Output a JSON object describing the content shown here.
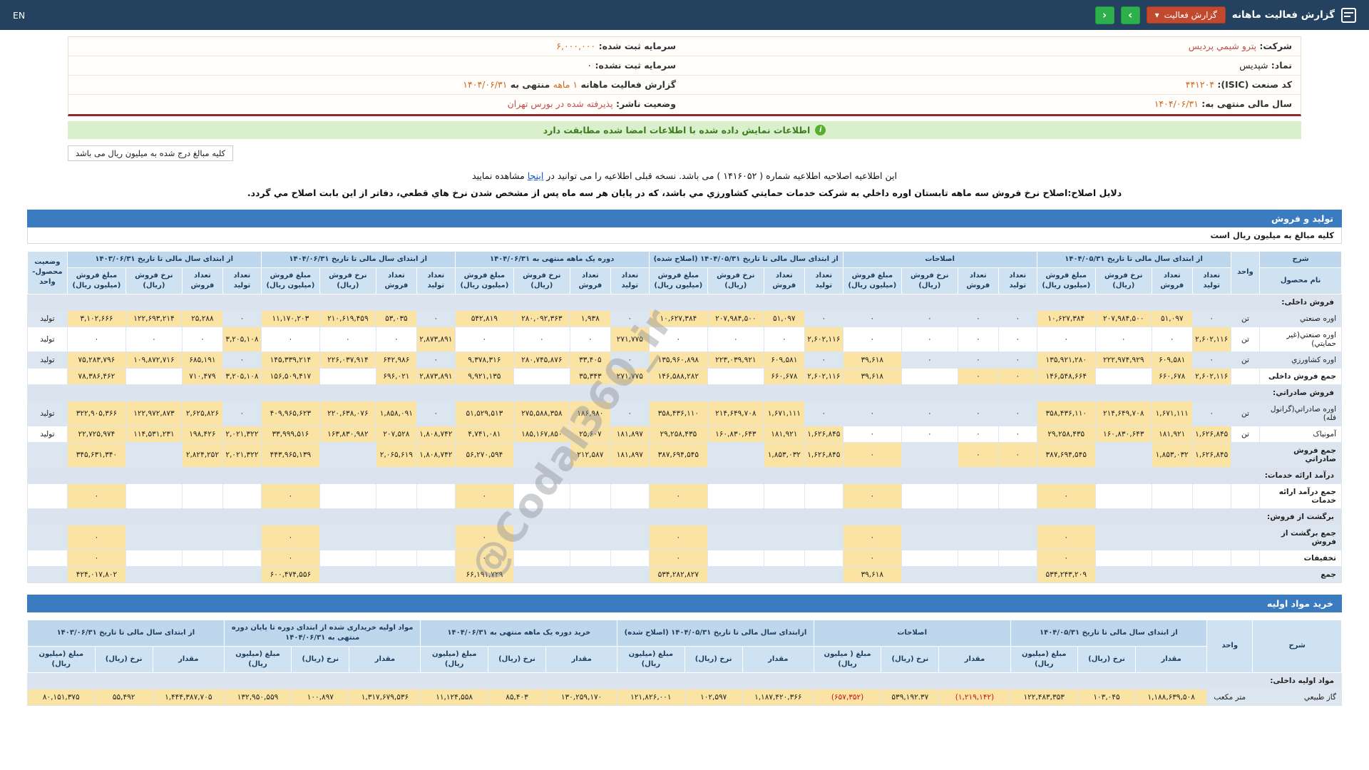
{
  "colors": {
    "navy": "#24415f",
    "btn_green": "#2db04b",
    "btn_red": "#c2482e",
    "bar_blue": "#3b7cc0",
    "head_blue": "#cfe2f2",
    "head_blue2": "#bed7ec",
    "row_blue": "#dce6f1",
    "cell_yellow": "#fbe3a3",
    "sec_row": "#dbe3ee",
    "green_bar_bg": "#daefcb",
    "green_bar_text": "#3c7d20",
    "orange": "#d2691e",
    "red_text": "#c0504d",
    "link": "#1155cc",
    "neg": "#cc1111",
    "border_info": "#e6e0cc",
    "info_bottom": "#8f2d2b"
  },
  "topbar": {
    "title": "گزارش فعالیت ماهانه",
    "dropdown_label": "گزارش فعالیت",
    "caret": "▾",
    "next_arrow": "›",
    "prev_arrow": "‹",
    "lang": "EN"
  },
  "company_info": {
    "rows": [
      [
        [
          {
            "t": "شرکت:  ",
            "b": 1
          },
          {
            "t": "پترو شیمي پردیس",
            "c": "red"
          }
        ],
        [
          {
            "t": "سرمایه ثبت شده:  ",
            "b": 1
          },
          {
            "t": "۶,۰۰۰,۰۰۰",
            "c": "org"
          }
        ]
      ],
      [
        [
          {
            "t": "نماد:  ",
            "b": 1
          },
          {
            "t": "شپدیس"
          }
        ],
        [
          {
            "t": "سرمایه ثبت نشده:  ",
            "b": 1
          },
          {
            "t": "۰"
          }
        ]
      ],
      [
        [
          {
            "t": "کد صنعت (ISIC):  ",
            "b": 1
          },
          {
            "t": "۴۴۱۲۰۴",
            "c": "org"
          }
        ],
        [
          {
            "t": "گزارش فعالیت ماهانه ",
            "b": 1
          },
          {
            "t": "۱ ماهه",
            "c": "org"
          },
          {
            "t": " منتهی به ",
            "b": 1
          },
          {
            "t": "۱۴۰۴/۰۶/۳۱",
            "c": "org"
          }
        ]
      ],
      [
        [
          {
            "t": "سال مالی منتهی به:  ",
            "b": 1
          },
          {
            "t": "۱۴۰۴/۰۶/۳۱",
            "c": "org"
          }
        ],
        [
          {
            "t": "وضعیت ناشر:  ",
            "b": 1
          },
          {
            "t": "پذیرفته شده در بورس تهران",
            "c": "red"
          }
        ]
      ]
    ]
  },
  "banners": {
    "match_text": "اطلاعات نمایش داده شده با اطلاعات امضا شده مطابقت دارد",
    "unit_note": "کلیه مبالغ درج شده به میلیون ریال می باشد"
  },
  "amendment": {
    "text_before": "این اطلاعیه اصلاحیه اطلاعیه شماره ( ۱۴۱۶۰۵۲ ) می باشد. نسخه قبلی اطلاعیه را می توانید در ",
    "link_text": "اینجا",
    "text_after": " مشاهده نمایید",
    "reason": "دلایل اصلاح:اصلاح نرخ فروش سه ماهه تابستان اوره داخلي به شرکت خدمات حمایتي کشاورزي مي باشد، که در پایان هر سه ماه پس از مشخص شدن نرخ هاي قطعي، دفاتر از این بابت اصلاح مي گردد."
  },
  "production": {
    "title": "تولید و فروش",
    "note": "کلیه مبالغ به میلیون ریال است"
  },
  "materials": {
    "title": "خرید مواد اولیه"
  },
  "watermark": {
    "text": "@Codal360_ir"
  },
  "tables": [
    {
      "name_top": "شرح",
      "name_sub": "نام محصول",
      "unit_col": "واحد",
      "status_col": "وضعیت محصول-واحد",
      "groups": [
        {
          "label": "از ابتدای سال مالی تا تاریخ ۱۴۰۴/۰۵/۳۱",
          "cols": [
            "تعداد تولید",
            "تعداد فروش",
            "نرخ فروش (ریال)",
            "مبلغ فروش (میلیون ریال)"
          ]
        },
        {
          "label": "اصلاحات",
          "cols": [
            "تعداد تولید",
            "تعداد فروش",
            "نرخ فروش (ریال)",
            "مبلغ فروش (میلیون ریال)"
          ]
        },
        {
          "label": "از ابتدای سال مالی تا تاریخ ۱۴۰۴/۰۵/۳۱ (اصلاح شده)",
          "cols": [
            "تعداد تولید",
            "تعداد فروش",
            "نرخ فروش (ریال)",
            "مبلغ فروش (میلیون ریال)"
          ]
        },
        {
          "label": "دوره یک ماهه منتهی به ۱۴۰۴/۰۶/۳۱",
          "cols": [
            "تعداد تولید",
            "تعداد فروش",
            "نرخ فروش (ریال)",
            "مبلغ فروش (میلیون ریال)"
          ]
        },
        {
          "label": "از ابتدای سال مالی تا تاریخ ۱۴۰۴/۰۶/۳۱",
          "cols": [
            "تعداد تولید",
            "تعداد فروش",
            "نرخ فروش (ریال)",
            "مبلغ فروش (میلیون ریال)"
          ]
        },
        {
          "label": "از ابتدای سال مالی تا تاریخ ۱۴۰۳/۰۶/۳۱",
          "cols": [
            "تعداد تولید",
            "تعداد فروش",
            "نرخ فروش (ریال)",
            "مبلغ فروش (میلیون ریال)"
          ]
        }
      ],
      "rows": [
        {
          "type": "section",
          "label": "فروش داخلی:"
        },
        {
          "type": "data",
          "name": "اوره صنعتي",
          "unit": "تن",
          "status": "تولید",
          "cells": [
            "۰",
            "۵۱,۰۹۷",
            "۲۰۷,۹۸۴,۵۰۰",
            "۱۰,۶۲۷,۳۸۴",
            "۰",
            "۰",
            "۰",
            "۰",
            "۰",
            "۵۱,۰۹۷",
            "۲۰۷,۹۸۴,۵۰۰",
            "۱۰,۶۲۷,۳۸۴",
            "۰",
            "۱,۹۳۸",
            "۲۸۰,۰۹۲,۳۶۳",
            "۵۴۲,۸۱۹",
            "۰",
            "۵۳,۰۳۵",
            "۲۱۰,۶۱۹,۴۵۹",
            "۱۱,۱۷۰,۲۰۳",
            "۰",
            "۲۵,۲۸۸",
            "۱۲۲,۶۹۳,۲۱۴",
            "۳,۱۰۲,۶۶۶"
          ]
        },
        {
          "type": "data",
          "name": "اوره صنعتي(غیر حمایتي)",
          "unit": "تن",
          "status": "تولید",
          "cells": [
            "۲,۶۰۲,۱۱۶",
            "۰",
            "۰",
            "۰",
            "۰",
            "۰",
            "۰",
            "۰",
            "۲,۶۰۲,۱۱۶",
            "۰",
            "۰",
            "۰",
            "۲۷۱,۷۷۵",
            "۰",
            "۰",
            "۰",
            "۲,۸۷۳,۸۹۱",
            "۰",
            "۰",
            "۰",
            "۳,۲۰۵,۱۰۸",
            "۰",
            "۰",
            "۰"
          ]
        },
        {
          "type": "data",
          "name": "اوره کشاورزي",
          "unit": "تن",
          "status": "تولید",
          "cells": [
            "۰",
            "۶۰۹,۵۸۱",
            "۲۲۲,۹۷۴,۹۲۹",
            "۱۳۵,۹۲۱,۲۸۰",
            "۰",
            "۰",
            "۰",
            "۳۹,۶۱۸",
            "۰",
            "۶۰۹,۵۸۱",
            "۲۲۳,۰۳۹,۹۲۱",
            "۱۳۵,۹۶۰,۸۹۸",
            "۰",
            "۳۳,۴۰۵",
            "۲۸۰,۷۴۵,۸۷۶",
            "۹,۳۷۸,۳۱۶",
            "۰",
            "۶۴۲,۹۸۶",
            "۲۲۶,۰۳۷,۹۱۴",
            "۱۴۵,۳۳۹,۲۱۴",
            "۰",
            "۶۸۵,۱۹۱",
            "۱۰۹,۸۷۲,۷۱۶",
            "۷۵,۲۸۳,۷۹۶"
          ]
        },
        {
          "type": "total",
          "name": "جمع فروش داخلی",
          "unit": "",
          "status": "",
          "cells": [
            "۲,۶۰۲,۱۱۶",
            "۶۶۰,۶۷۸",
            "",
            "۱۴۶,۵۴۸,۶۶۴",
            "۰",
            "۰",
            "",
            "۳۹,۶۱۸",
            "۲,۶۰۲,۱۱۶",
            "۶۶۰,۶۷۸",
            "",
            "۱۴۶,۵۸۸,۲۸۲",
            "۲۷۱,۷۷۵",
            "۳۵,۳۴۳",
            "",
            "۹,۹۲۱,۱۳۵",
            "۲,۸۷۳,۸۹۱",
            "۶۹۶,۰۲۱",
            "",
            "۱۵۶,۵۰۹,۴۱۷",
            "۳,۲۰۵,۱۰۸",
            "۷۱۰,۴۷۹",
            "",
            "۷۸,۳۸۶,۴۶۲"
          ]
        },
        {
          "type": "section",
          "label": "فروش صادراتي:"
        },
        {
          "type": "data",
          "name": "اوره صادراتي(گرانول فله)",
          "unit": "تن",
          "status": "تولید",
          "cells": [
            "۰",
            "۱,۶۷۱,۱۱۱",
            "۲۱۴,۶۴۹,۷۰۸",
            "۳۵۸,۴۳۶,۱۱۰",
            "۰",
            "۰",
            "۰",
            "۰",
            "۰",
            "۱,۶۷۱,۱۱۱",
            "۲۱۴,۶۴۹,۷۰۸",
            "۳۵۸,۴۳۶,۱۱۰",
            "۰",
            "۱۸۶,۹۸۰",
            "۲۷۵,۵۸۸,۳۵۸",
            "۵۱,۵۲۹,۵۱۳",
            "۰",
            "۱,۸۵۸,۰۹۱",
            "۲۲۰,۶۳۸,۰۷۶",
            "۴۰۹,۹۶۵,۶۲۳",
            "۰",
            "۲,۶۲۵,۸۲۶",
            "۱۲۲,۹۷۲,۸۷۳",
            "۳۲۲,۹۰۵,۳۶۶"
          ]
        },
        {
          "type": "data",
          "name": "آمونیاک",
          "unit": "تن",
          "status": "تولید",
          "cells": [
            "۱,۶۲۶,۸۴۵",
            "۱۸۱,۹۲۱",
            "۱۶۰,۸۳۰,۶۴۳",
            "۲۹,۲۵۸,۴۳۵",
            "۰",
            "۰",
            "۰",
            "۰",
            "۱,۶۲۶,۸۴۵",
            "۱۸۱,۹۲۱",
            "۱۶۰,۸۳۰,۶۴۳",
            "۲۹,۲۵۸,۴۳۵",
            "۱۸۱,۸۹۷",
            "۲۵,۶۰۷",
            "۱۸۵,۱۶۷,۸۵۰",
            "۴,۷۴۱,۰۸۱",
            "۱,۸۰۸,۷۴۲",
            "۲۰۷,۵۲۸",
            "۱۶۳,۸۳۰,۹۸۲",
            "۳۳,۹۹۹,۵۱۶",
            "۲,۰۲۱,۳۲۲",
            "۱۹۸,۴۲۶",
            "۱۱۴,۵۳۱,۲۳۱",
            "۲۲,۷۲۵,۹۷۴"
          ]
        },
        {
          "type": "total",
          "name": "جمع فروش صادراتي",
          "unit": "",
          "status": "",
          "cells": [
            "۱,۶۲۶,۸۴۵",
            "۱,۸۵۳,۰۳۲",
            "",
            "۳۸۷,۶۹۴,۵۴۵",
            "۰",
            "۰",
            "",
            "۰",
            "۱,۶۲۶,۸۴۵",
            "۱,۸۵۳,۰۳۲",
            "",
            "۳۸۷,۶۹۴,۵۴۵",
            "۱۸۱,۸۹۷",
            "۲۱۲,۵۸۷",
            "",
            "۵۶,۲۷۰,۵۹۴",
            "۱,۸۰۸,۷۴۲",
            "۲,۰۶۵,۶۱۹",
            "",
            "۴۴۳,۹۶۵,۱۳۹",
            "۲,۰۲۱,۳۲۲",
            "۲,۸۲۴,۲۵۲",
            "",
            "۳۴۵,۶۳۱,۳۴۰"
          ]
        },
        {
          "type": "section",
          "label": "درآمد ارائه خدمات:"
        },
        {
          "type": "total",
          "name": "جمع درآمد ارائه خدمات",
          "unit": "",
          "status": "",
          "cells": [
            "",
            "",
            "",
            "۰",
            "",
            "",
            "",
            "۰",
            "",
            "",
            "",
            "۰",
            "",
            "",
            "",
            "۰",
            "",
            "",
            "",
            "۰",
            "",
            "",
            "",
            "۰"
          ]
        },
        {
          "type": "section",
          "label": "برگشت از فروش:"
        },
        {
          "type": "total",
          "name": "جمع برگشت از فروش",
          "unit": "",
          "status": "",
          "cells": [
            "",
            "",
            "",
            "۰",
            "",
            "",
            "",
            "۰",
            "",
            "",
            "",
            "۰",
            "",
            "",
            "",
            "۰",
            "",
            "",
            "",
            "۰",
            "",
            "",
            "",
            "۰"
          ]
        },
        {
          "type": "total",
          "name": "تخفیفات",
          "unit": "",
          "status": "",
          "cells": [
            "",
            "",
            "",
            "۰",
            "",
            "",
            "",
            "۰",
            "",
            "",
            "",
            "۰",
            "",
            "",
            "",
            "۰",
            "",
            "",
            "",
            "۰",
            "",
            "",
            "",
            "۰"
          ]
        },
        {
          "type": "total",
          "name": "جمع",
          "unit": "",
          "status": "",
          "cells": [
            "",
            "",
            "",
            "۵۳۴,۲۴۳,۲۰۹",
            "",
            "",
            "",
            "۳۹,۶۱۸",
            "",
            "",
            "",
            "۵۳۴,۲۸۲,۸۲۷",
            "",
            "",
            "",
            "۶۶,۱۹۱,۷۲۹",
            "",
            "",
            "",
            "۶۰۰,۴۷۴,۵۵۶",
            "",
            "",
            "",
            "۴۲۴,۰۱۷,۸۰۲"
          ]
        }
      ]
    },
    {
      "name_top": "شرح",
      "name_sub": null,
      "unit_col": "واحد",
      "status_col": null,
      "groups": [
        {
          "label": "از ابتدای سال مالی تا تاریخ ۱۴۰۴/۰۵/۳۱",
          "cols": [
            "مقدار",
            "نرخ (ریال)",
            "مبلغ (میلیون ریال)"
          ]
        },
        {
          "label": "اصلاحات",
          "cols": [
            "مقدار",
            "نرخ (ریال)",
            "مبلغ ( میلیون ریال)"
          ]
        },
        {
          "label": "ازابتدای سال مالی تا تاریخ ۱۴۰۴/۰۵/۳۱ (اصلاح شده)",
          "cols": [
            "مقدار",
            "نرخ (ریال)",
            "مبلغ (میلیون ریال)"
          ]
        },
        {
          "label": "خرید دوره یک ماهه منتهی به ۱۴۰۴/۰۶/۳۱",
          "cols": [
            "مقدار",
            "نرخ (ریال)",
            "مبلغ (میلیون ریال)"
          ]
        },
        {
          "label": "مواد اولیه خریداری شده از ابتدای دوره تا پایان دوره منتهی به ۱۴۰۴/۰۶/۳۱",
          "cols": [
            "مقدار",
            "نرخ (ریال)",
            "مبلغ (میلیون ریال)"
          ]
        },
        {
          "label": "از ابتدای سال مالی تا تاریخ ۱۴۰۳/۰۶/۳۱",
          "cols": [
            "مقدار",
            "نرخ (ریال)",
            "مبلغ (میلیون ریال)"
          ]
        }
      ],
      "rows": [
        {
          "type": "section",
          "label": "مواد اولیه داخلی:"
        },
        {
          "type": "data",
          "name": "گاز طبیعي",
          "unit": "متر مکعب",
          "status": "",
          "cells": [
            "۱,۱۸۸,۶۳۹,۵۰۸",
            "۱۰۳,۰۴۵",
            "۱۲۲,۴۸۳,۳۵۳",
            "(۱,۲۱۹,۱۴۲)",
            "۵۳۹,۱۹۲.۳۷",
            "(۶۵۷,۳۵۲)",
            "۱,۱۸۷,۴۲۰,۳۶۶",
            "۱۰۲,۵۹۷",
            "۱۲۱,۸۲۶,۰۰۱",
            "۱۳۰,۲۵۹,۱۷۰",
            "۸۵,۴۰۳",
            "۱۱,۱۲۴,۵۵۸",
            "۱,۳۱۷,۶۷۹,۵۳۶",
            "۱۰۰,۸۹۷",
            "۱۳۲,۹۵۰,۵۵۹",
            "۱,۴۴۴,۳۸۷,۷۰۵",
            "۵۵,۴۹۲",
            "۸۰,۱۵۱,۳۷۵"
          ]
        }
      ]
    }
  ]
}
